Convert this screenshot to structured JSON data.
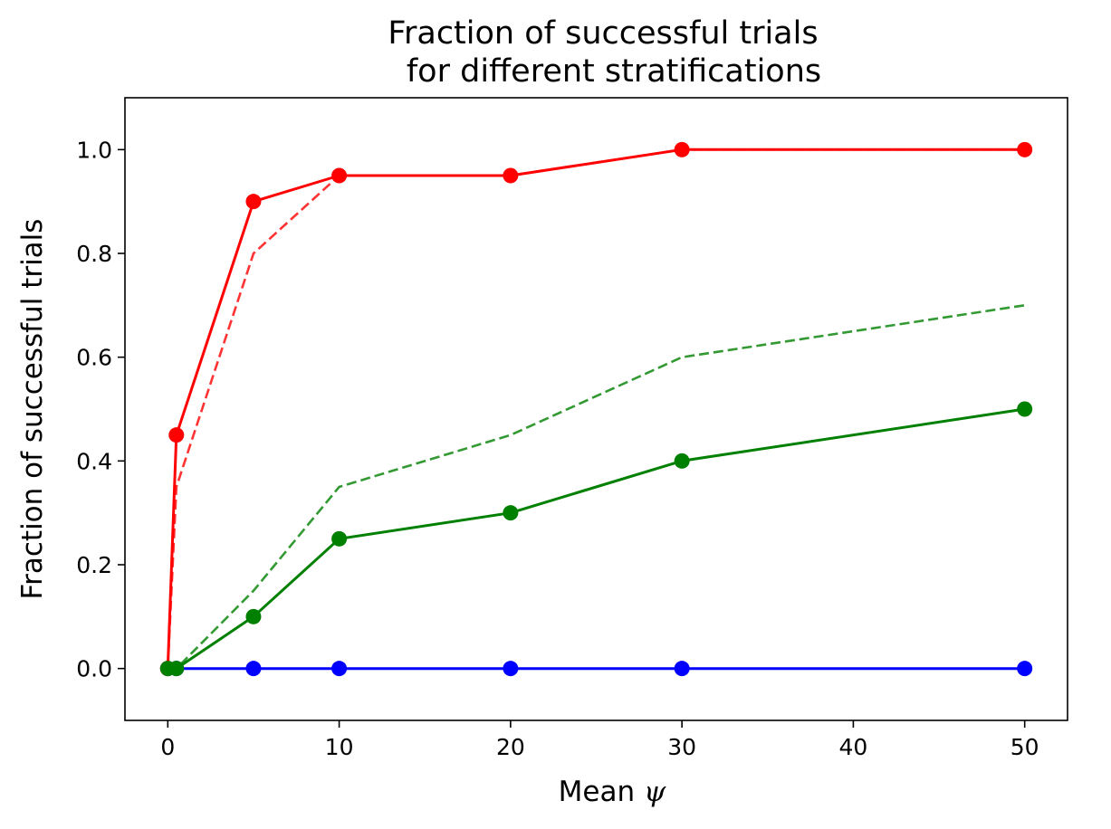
{
  "chart_data": {
    "type": "line",
    "title_line1": "Fraction of successful trials",
    "title_line2": "for different stratifications",
    "xlabel_prefix": "Mean ",
    "xlabel_symbol": "ψ",
    "ylabel": "Fraction of successful trials",
    "xlim": [
      -2.5,
      52.5
    ],
    "ylim": [
      -0.1,
      1.1
    ],
    "xticks": [
      0,
      10,
      20,
      30,
      40,
      50
    ],
    "xtick_labels": [
      "0",
      "10",
      "20",
      "30",
      "40",
      "50"
    ],
    "yticks": [
      0.0,
      0.2,
      0.4,
      0.6,
      0.8,
      1.0
    ],
    "ytick_labels": [
      "0.0",
      "0.2",
      "0.4",
      "0.6",
      "0.8",
      "1.0"
    ],
    "grid": false,
    "series": [
      {
        "color": "#0000ff",
        "style": "solid",
        "markers": true,
        "x": [
          0,
          0.5,
          5,
          10,
          20,
          30,
          50
        ],
        "y": [
          0,
          0,
          0,
          0,
          0,
          0,
          0
        ]
      },
      {
        "color": "#ff0000",
        "style": "solid",
        "markers": true,
        "x": [
          0,
          0.5,
          5,
          10,
          20,
          30,
          50
        ],
        "y": [
          0,
          0.45,
          0.9,
          0.95,
          0.95,
          1.0,
          1.0
        ]
      },
      {
        "color": "#ff0000",
        "style": "dashed",
        "markers": false,
        "x": [
          0,
          0.5,
          5,
          10,
          20,
          30,
          50
        ],
        "y": [
          0,
          0.35,
          0.8,
          0.95,
          0.95,
          1.0,
          1.0
        ]
      },
      {
        "color": "#008000",
        "style": "solid",
        "markers": true,
        "x": [
          0,
          0.5,
          5,
          10,
          20,
          30,
          50
        ],
        "y": [
          0,
          0,
          0.1,
          0.25,
          0.3,
          0.4,
          0.5
        ]
      },
      {
        "color": "#008000",
        "style": "dashed",
        "markers": false,
        "x": [
          0,
          0.5,
          5,
          10,
          20,
          30,
          50
        ],
        "y": [
          0,
          0,
          0.15,
          0.35,
          0.45,
          0.6,
          0.7
        ]
      }
    ]
  }
}
